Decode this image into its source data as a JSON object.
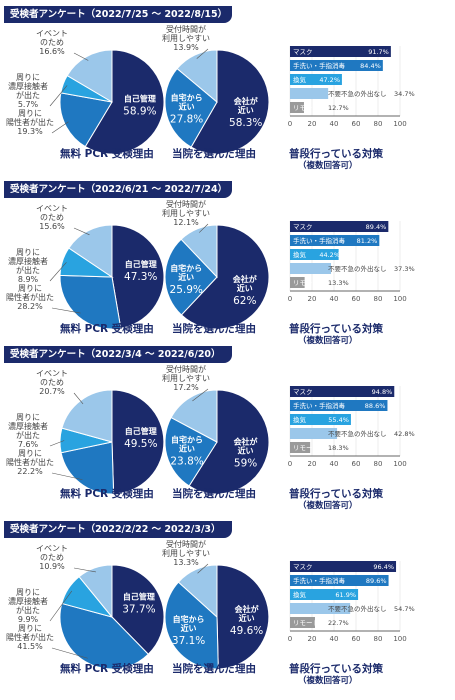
{
  "surveys": [
    {
      "header": "受検者アンケート（2022/7/25 ～ 2022/8/15）",
      "pie1": {
        "caption": "無料 PCR 受検理由",
        "slices": [
          {
            "label": "自己管理",
            "pct": "58.9%",
            "value": 58.9,
            "color": "#1b2a6b"
          },
          {
            "label": "周りに\n陽性者が出た",
            "pct": "19.3%",
            "value": 19.3,
            "color": "#1f78c1"
          },
          {
            "label": "周りに\n濃厚接触者\nが出た",
            "pct": "5.7%",
            "value": 5.7,
            "color": "#29a3e0"
          },
          {
            "label": "イベント\nのため",
            "pct": "16.6%",
            "value": 16.6,
            "color": "#9bc7ea"
          }
        ]
      },
      "pie2": {
        "caption": "当院を選んだ理由",
        "slices": [
          {
            "label": "会社が\n近い",
            "pct": "58.3%",
            "value": 58.3,
            "color": "#1b2a6b"
          },
          {
            "label": "自宅から\n近い",
            "pct": "27.8%",
            "value": 27.8,
            "color": "#1f78c1"
          },
          {
            "label": "受付時間が\n利用しやすい",
            "pct": "13.9%",
            "value": 13.9,
            "color": "#9bc7ea"
          }
        ]
      },
      "bars": {
        "caption": "普段行っている対策",
        "subcaption": "（複数回答可）",
        "items": [
          {
            "label": "マスク",
            "pct": "91.7%",
            "value": 91.7
          },
          {
            "label": "手洗い・手指消毒",
            "pct": "84.4%",
            "value": 84.4
          },
          {
            "label": "換気",
            "pct": "47.2%",
            "value": 47.2
          },
          {
            "label": "不要不急の外出なし",
            "pct": "34.7%",
            "value": 34.7
          },
          {
            "label": "リモート",
            "pct": "12.7%",
            "value": 12.7
          }
        ]
      }
    },
    {
      "header": "受検者アンケート（2022/6/21 ～ 2022/7/24）",
      "pie1": {
        "caption": "無料 PCR 受検理由",
        "slices": [
          {
            "label": "自己管理",
            "pct": "47.3%",
            "value": 47.3,
            "color": "#1b2a6b"
          },
          {
            "label": "周りに\n陽性者が出た",
            "pct": "28.2%",
            "value": 28.2,
            "color": "#1f78c1"
          },
          {
            "label": "周りに\n濃厚接触者\nが出た",
            "pct": "8.9%",
            "value": 8.9,
            "color": "#29a3e0"
          },
          {
            "label": "イベント\nのため",
            "pct": "15.6%",
            "value": 15.6,
            "color": "#9bc7ea"
          }
        ]
      },
      "pie2": {
        "caption": "当院を選んだ理由",
        "slices": [
          {
            "label": "会社が\n近い",
            "pct": "62%",
            "value": 62,
            "color": "#1b2a6b"
          },
          {
            "label": "自宅から\n近い",
            "pct": "25.9%",
            "value": 25.9,
            "color": "#1f78c1"
          },
          {
            "label": "受付時間が\n利用しやすい",
            "pct": "12.1%",
            "value": 12.1,
            "color": "#9bc7ea"
          }
        ]
      },
      "bars": {
        "caption": "普段行っている対策",
        "subcaption": "（複数回答可）",
        "items": [
          {
            "label": "マスク",
            "pct": "89.4%",
            "value": 89.4
          },
          {
            "label": "手洗い・手指消毒",
            "pct": "81.2%",
            "value": 81.2
          },
          {
            "label": "換気",
            "pct": "44.2%",
            "value": 44.2
          },
          {
            "label": "不要不急の外出なし",
            "pct": "37.3%",
            "value": 37.3
          },
          {
            "label": "リモート",
            "pct": "13.3%",
            "value": 13.3
          }
        ]
      }
    },
    {
      "header": "受検者アンケート（2022/3/4 ～ 2022/6/20）",
      "pie1": {
        "caption": "無料 PCR 受検理由",
        "slices": [
          {
            "label": "自己管理",
            "pct": "49.5%",
            "value": 49.5,
            "color": "#1b2a6b"
          },
          {
            "label": "周りに\n陽性者が出た",
            "pct": "22.2%",
            "value": 22.2,
            "color": "#1f78c1"
          },
          {
            "label": "周りに\n濃厚接触者\nが出た",
            "pct": "7.6%",
            "value": 7.6,
            "color": "#29a3e0"
          },
          {
            "label": "イベント\nのため",
            "pct": "20.7%",
            "value": 20.7,
            "color": "#9bc7ea"
          }
        ]
      },
      "pie2": {
        "caption": "当院を選んだ理由",
        "slices": [
          {
            "label": "会社が\n近い",
            "pct": "59%",
            "value": 59,
            "color": "#1b2a6b"
          },
          {
            "label": "自宅から\n近い",
            "pct": "23.8%",
            "value": 23.8,
            "color": "#1f78c1"
          },
          {
            "label": "受付時間が\n利用しやすい",
            "pct": "17.2%",
            "value": 17.2,
            "color": "#9bc7ea"
          }
        ]
      },
      "bars": {
        "caption": "普段行っている対策",
        "subcaption": "（複数回答可）",
        "items": [
          {
            "label": "マスク",
            "pct": "94.8%",
            "value": 94.8
          },
          {
            "label": "手洗い・手指消毒",
            "pct": "88.6%",
            "value": 88.6
          },
          {
            "label": "換気",
            "pct": "55.4%",
            "value": 55.4
          },
          {
            "label": "不要不急の外出なし",
            "pct": "42.8%",
            "value": 42.8
          },
          {
            "label": "リモート",
            "pct": "18.3%",
            "value": 18.3
          }
        ]
      }
    },
    {
      "header": "受検者アンケート（2022/2/22 ～ 2022/3/3）",
      "pie1": {
        "caption": "無料 PCR 受検理由",
        "slices": [
          {
            "label": "自己管理",
            "pct": "37.7%",
            "value": 37.7,
            "color": "#1b2a6b"
          },
          {
            "label": "周りに\n陽性者が出た",
            "pct": "41.5%",
            "value": 41.5,
            "color": "#1f78c1"
          },
          {
            "label": "周りに\n濃厚接触者\nが出た",
            "pct": "9.9%",
            "value": 9.9,
            "color": "#29a3e0"
          },
          {
            "label": "イベント\nのため",
            "pct": "10.9%",
            "value": 10.9,
            "color": "#9bc7ea"
          }
        ]
      },
      "pie2": {
        "caption": "当院を選んだ理由",
        "slices": [
          {
            "label": "会社が\n近い",
            "pct": "49.6%",
            "value": 49.6,
            "color": "#1b2a6b"
          },
          {
            "label": "自宅から\n近い",
            "pct": "37.1%",
            "value": 37.1,
            "color": "#1f78c1"
          },
          {
            "label": "受付時間が\n利用しやすい",
            "pct": "13.3%",
            "value": 13.3,
            "color": "#9bc7ea"
          }
        ]
      },
      "bars": {
        "caption": "普段行っている対策",
        "subcaption": "（複数回答可）",
        "items": [
          {
            "label": "マスク",
            "pct": "96.4%",
            "value": 96.4
          },
          {
            "label": "手洗い・手指消毒",
            "pct": "89.6%",
            "value": 89.6
          },
          {
            "label": "換気",
            "pct": "61.9%",
            "value": 61.9
          },
          {
            "label": "不要不急の外出なし",
            "pct": "54.7%",
            "value": 54.7
          },
          {
            "label": "リモート",
            "pct": "22.7%",
            "value": 22.7
          }
        ]
      }
    }
  ],
  "axis_ticks": [
    "0",
    "20",
    "40",
    "60",
    "80",
    "100"
  ],
  "chart_data": [
    {
      "type": "pie",
      "title": "無料 PCR 受検理由",
      "period": "2022/7/25 ～ 2022/8/15",
      "categories": [
        "自己管理",
        "周りに陽性者が出た",
        "周りに濃厚接触者が出た",
        "イベントのため"
      ],
      "values": [
        58.9,
        19.3,
        5.7,
        16.6
      ]
    },
    {
      "type": "pie",
      "title": "当院を選んだ理由",
      "period": "2022/7/25 ～ 2022/8/15",
      "categories": [
        "会社が近い",
        "自宅から近い",
        "受付時間が利用しやすい"
      ],
      "values": [
        58.3,
        27.8,
        13.9
      ]
    },
    {
      "type": "bar",
      "title": "普段行っている対策（複数回答可）",
      "period": "2022/7/25 ～ 2022/8/15",
      "categories": [
        "マスク",
        "手洗い・手指消毒",
        "換気",
        "不要不急の外出なし",
        "リモート"
      ],
      "values": [
        91.7,
        84.4,
        47.2,
        34.7,
        12.7
      ],
      "xlim": [
        0,
        100
      ]
    },
    {
      "type": "pie",
      "title": "無料 PCR 受検理由",
      "period": "2022/6/21 ～ 2022/7/24",
      "categories": [
        "自己管理",
        "周りに陽性者が出た",
        "周りに濃厚接触者が出た",
        "イベントのため"
      ],
      "values": [
        47.3,
        28.2,
        8.9,
        15.6
      ]
    },
    {
      "type": "pie",
      "title": "当院を選んだ理由",
      "period": "2022/6/21 ～ 2022/7/24",
      "categories": [
        "会社が近い",
        "自宅から近い",
        "受付時間が利用しやすい"
      ],
      "values": [
        62,
        25.9,
        12.1
      ]
    },
    {
      "type": "bar",
      "title": "普段行っている対策（複数回答可）",
      "period": "2022/6/21 ～ 2022/7/24",
      "categories": [
        "マスク",
        "手洗い・手指消毒",
        "換気",
        "不要不急の外出なし",
        "リモート"
      ],
      "values": [
        89.4,
        81.2,
        44.2,
        37.3,
        13.3
      ],
      "xlim": [
        0,
        100
      ]
    },
    {
      "type": "pie",
      "title": "無料 PCR 受検理由",
      "period": "2022/3/4 ～ 2022/6/20",
      "categories": [
        "自己管理",
        "周りに陽性者が出た",
        "周りに濃厚接触者が出た",
        "イベントのため"
      ],
      "values": [
        49.5,
        22.2,
        7.6,
        20.7
      ]
    },
    {
      "type": "pie",
      "title": "当院を選んだ理由",
      "period": "2022/3/4 ～ 2022/6/20",
      "categories": [
        "会社が近い",
        "自宅から近い",
        "受付時間が利用しやすい"
      ],
      "values": [
        59,
        23.8,
        17.2
      ]
    },
    {
      "type": "bar",
      "title": "普段行っている対策（複数回答可）",
      "period": "2022/3/4 ～ 2022/6/20",
      "categories": [
        "マスク",
        "手洗い・手指消毒",
        "換気",
        "不要不急の外出なし",
        "リモート"
      ],
      "values": [
        94.8,
        88.6,
        55.4,
        42.8,
        18.3
      ],
      "xlim": [
        0,
        100
      ]
    },
    {
      "type": "pie",
      "title": "無料 PCR 受検理由",
      "period": "2022/2/22 ～ 2022/3/3",
      "categories": [
        "自己管理",
        "周りに陽性者が出た",
        "周りに濃厚接触者が出た",
        "イベントのため"
      ],
      "values": [
        37.7,
        41.5,
        9.9,
        10.9
      ]
    },
    {
      "type": "pie",
      "title": "当院を選んだ理由",
      "period": "2022/2/22 ～ 2022/3/3",
      "categories": [
        "会社が近い",
        "自宅から近い",
        "受付時間が利用しやすい"
      ],
      "values": [
        49.6,
        37.1,
        13.3
      ]
    },
    {
      "type": "bar",
      "title": "普段行っている対策（複数回答可）",
      "period": "2022/2/22 ～ 2022/3/3",
      "categories": [
        "マスク",
        "手洗い・手指消毒",
        "換気",
        "不要不急の外出なし",
        "リモート"
      ],
      "values": [
        96.4,
        89.6,
        61.9,
        54.7,
        22.7
      ],
      "xlim": [
        0,
        100
      ]
    }
  ]
}
